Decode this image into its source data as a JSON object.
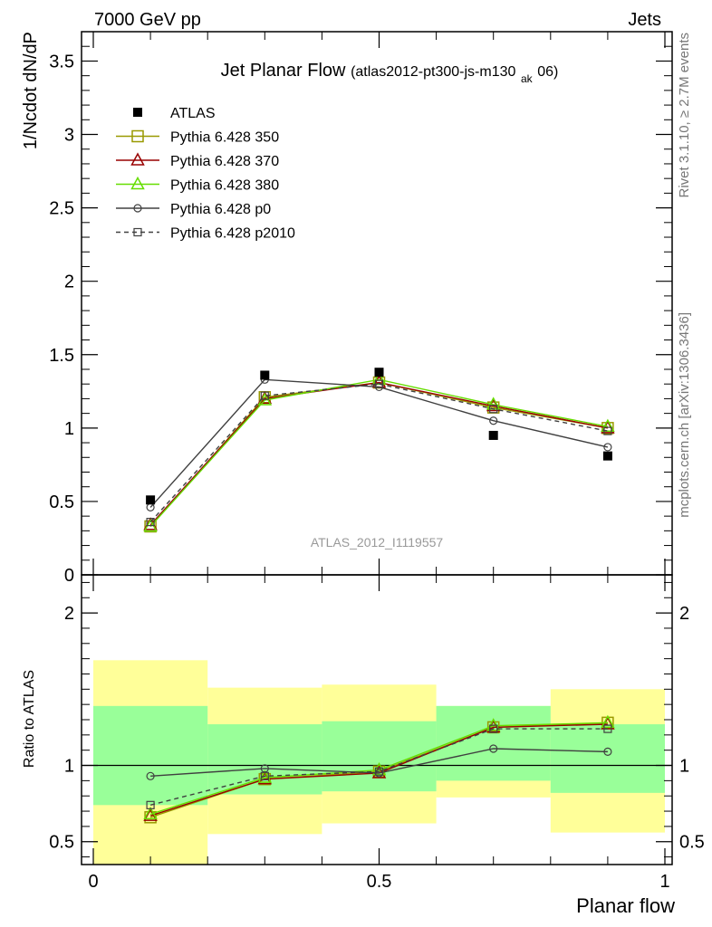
{
  "header": {
    "left_title": "7000 GeV pp",
    "right_title": "Jets",
    "side_rivet": "Rivet 3.1.10, ≥ 2.7M events",
    "side_mcplots": "mcplots.cern.ch [arXiv:1306.3436]"
  },
  "chart_data": [
    {
      "type": "line",
      "title": "Jet Planar Flow",
      "subtitle_parts": [
        "(atlas2012-pt300-js-m130",
        "ak",
        "06)"
      ],
      "ylabel": "1/Ncdot dN/dP",
      "watermark": "ATLAS_2012_I1119557",
      "xlim": [
        0,
        1
      ],
      "ylim": [
        0,
        3.7
      ],
      "x": [
        0.1,
        0.3,
        0.5,
        0.7,
        0.9
      ],
      "y_ticks": [
        {
          "v": 0.5,
          "t": "0.5"
        },
        {
          "v": 1,
          "t": "1"
        },
        {
          "v": 1.5,
          "t": "1.5"
        },
        {
          "v": 2,
          "t": "2"
        },
        {
          "v": 2.5,
          "t": "2.5"
        },
        {
          "v": 3,
          "t": "3"
        },
        {
          "v": 3.5,
          "t": "3.5"
        },
        {
          "v": 0,
          "t": "0"
        }
      ],
      "data": {
        "name": "ATLAS",
        "values": [
          0.51,
          1.36,
          1.38,
          0.95,
          0.81
        ]
      },
      "series": [
        {
          "name": "Pythia 6.428 350",
          "color": "#999900",
          "marker": "square-open",
          "dash": "solid",
          "values": [
            0.33,
            1.21,
            1.31,
            1.14,
            1.0
          ]
        },
        {
          "name": "Pythia 6.428 370",
          "color": "#990000",
          "marker": "triangle-open",
          "dash": "solid",
          "values": [
            0.34,
            1.2,
            1.31,
            1.15,
            1.0
          ]
        },
        {
          "name": "Pythia 6.428 380",
          "color": "#66dd00",
          "marker": "triangle-open",
          "dash": "solid",
          "values": [
            0.33,
            1.19,
            1.33,
            1.16,
            1.01
          ]
        },
        {
          "name": "Pythia 6.428 p0",
          "color": "#404040",
          "marker": "circle-open",
          "dash": "solid",
          "values": [
            0.46,
            1.33,
            1.28,
            1.05,
            0.87
          ]
        },
        {
          "name": "Pythia 6.428 p2010",
          "color": "#404040",
          "marker": "square-open-small",
          "dash": "dashed",
          "values": [
            0.36,
            1.22,
            1.3,
            1.13,
            0.98
          ]
        }
      ]
    },
    {
      "type": "line",
      "ylabel": "Ratio to ATLAS",
      "xlabel": "Planar flow",
      "xlim": [
        0,
        1
      ],
      "ylim": [
        0.35,
        2.25
      ],
      "x": [
        0.1,
        0.3,
        0.5,
        0.7,
        0.9
      ],
      "x_ticks": [
        {
          "v": 0,
          "t": "0"
        },
        {
          "v": 0.5,
          "t": "0.5"
        },
        {
          "v": 1,
          "t": "1"
        }
      ],
      "y_ticks": [
        {
          "v": 0.5,
          "t": "0.5"
        },
        {
          "v": 1,
          "t": "1"
        },
        {
          "v": 2,
          "t": "2"
        }
      ],
      "bands": [
        {
          "xlo": 0.0,
          "xhi": 0.2,
          "green": [
            0.74,
            1.39
          ],
          "yellow": [
            0.35,
            1.69
          ]
        },
        {
          "xlo": 0.2,
          "xhi": 0.4,
          "green": [
            0.81,
            1.27
          ],
          "yellow": [
            0.55,
            1.51
          ]
        },
        {
          "xlo": 0.4,
          "xhi": 0.6,
          "green": [
            0.83,
            1.29
          ],
          "yellow": [
            0.62,
            1.53
          ]
        },
        {
          "xlo": 0.6,
          "xhi": 0.8,
          "green": [
            0.9,
            1.39
          ],
          "yellow": [
            0.79,
            1.39
          ]
        },
        {
          "xlo": 0.8,
          "xhi": 1.0,
          "green": [
            0.82,
            1.27
          ],
          "yellow": [
            0.56,
            1.5
          ]
        }
      ],
      "band_colors": {
        "green": "#99ff99",
        "yellow": "#ffff99"
      },
      "series": [
        {
          "name": "Pythia 6.428 350",
          "color": "#999900",
          "marker": "square-open",
          "dash": "solid",
          "values": [
            0.66,
            0.91,
            0.96,
            1.25,
            1.28
          ]
        },
        {
          "name": "Pythia 6.428 370",
          "color": "#990000",
          "marker": "triangle-open",
          "dash": "solid",
          "values": [
            0.67,
            0.91,
            0.95,
            1.25,
            1.27
          ]
        },
        {
          "name": "Pythia 6.428 380",
          "color": "#66dd00",
          "marker": "triangle-open",
          "dash": "solid",
          "values": [
            0.68,
            0.92,
            0.97,
            1.26,
            1.28
          ]
        },
        {
          "name": "Pythia 6.428 p0",
          "color": "#404040",
          "marker": "circle-open",
          "dash": "solid",
          "values": [
            0.93,
            0.98,
            0.95,
            1.11,
            1.09
          ]
        },
        {
          "name": "Pythia 6.428 p2010",
          "color": "#404040",
          "marker": "square-open-small",
          "dash": "dashed",
          "values": [
            0.74,
            0.93,
            0.96,
            1.24,
            1.24
          ]
        }
      ]
    }
  ]
}
